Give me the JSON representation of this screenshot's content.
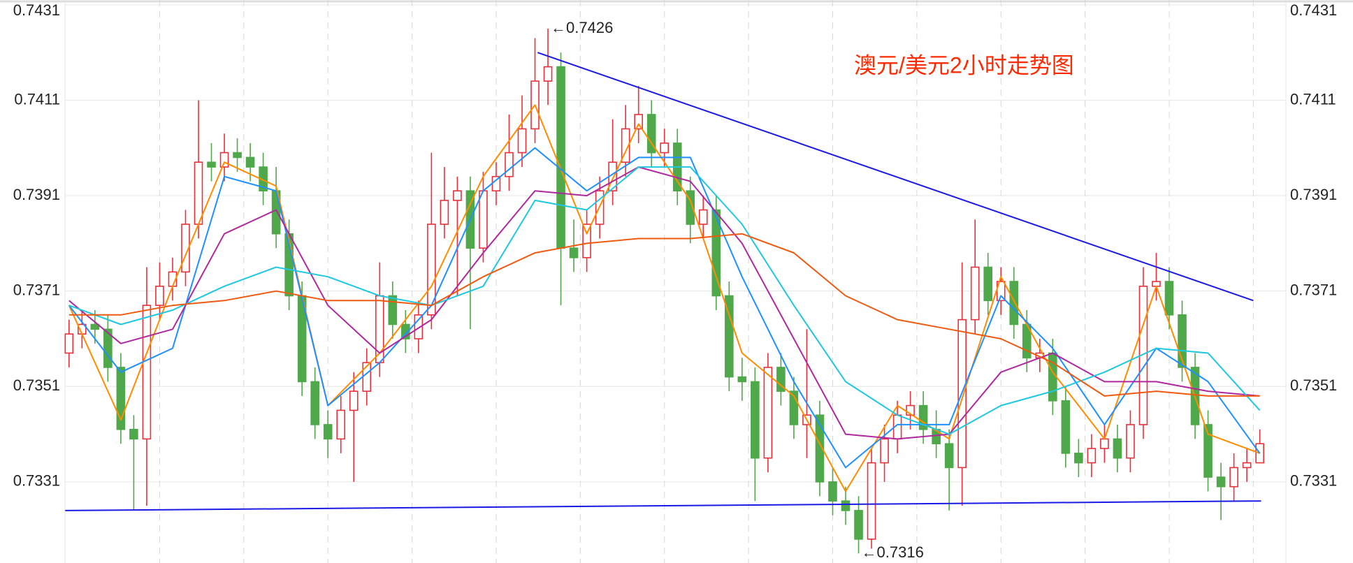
{
  "chart_data": {
    "type": "candlestick",
    "title": "澳元/美元2小时走势图",
    "title_color": "#ff2a00",
    "up_color": "#e8313a",
    "down_color": "#4fa84a",
    "ylim": [
      0.7314,
      0.7432
    ],
    "yticks": [
      0.7331,
      0.7351,
      0.7371,
      0.7391,
      0.7411,
      0.7431
    ],
    "grid": true,
    "xgrid": [
      7,
      13.5,
      20,
      26.5,
      33,
      39.5,
      46,
      52.5,
      59,
      65.5,
      72,
      78.5,
      85,
      91.5
    ],
    "open": [
      0.7358,
      0.7362,
      0.7364,
      0.7363,
      0.7355,
      0.7342,
      0.734,
      0.7368,
      0.7372,
      0.7375,
      0.7385,
      0.7398,
      0.7397,
      0.74,
      0.7399,
      0.7397,
      0.7392,
      0.7383,
      0.737,
      0.7352,
      0.7343,
      0.734,
      0.7346,
      0.735,
      0.7356,
      0.737,
      0.7364,
      0.7361,
      0.7366,
      0.7385,
      0.739,
      0.7392,
      0.738,
      0.7392,
      0.7395,
      0.74,
      0.7405,
      0.7415,
      0.7418,
      0.738,
      0.7378,
      0.7385,
      0.7392,
      0.7398,
      0.7405,
      0.7408,
      0.74,
      0.7402,
      0.7392,
      0.7385,
      0.7388,
      0.737,
      0.7353,
      0.7352,
      0.7336,
      0.7355,
      0.735,
      0.7343,
      0.7345,
      0.7331,
      0.7327,
      0.7325,
      0.7319,
      0.7335,
      0.734,
      0.7345,
      0.7347,
      0.7342,
      0.7339,
      0.7334,
      0.7365,
      0.7376,
      0.7369,
      0.7373,
      0.7364,
      0.7357,
      0.7358,
      0.7348,
      0.7337,
      0.7335,
      0.7338,
      0.734,
      0.7336,
      0.7343,
      0.7372,
      0.7373,
      0.7366,
      0.7355,
      0.7343,
      0.7332,
      0.733,
      0.7334,
      0.7335
    ],
    "high": [
      0.7365,
      0.7367,
      0.7367,
      0.7366,
      0.7358,
      0.7345,
      0.7376,
      0.7377,
      0.7378,
      0.7388,
      0.7411,
      0.7402,
      0.7404,
      0.7403,
      0.7402,
      0.74,
      0.7397,
      0.7386,
      0.7373,
      0.7355,
      0.7346,
      0.7349,
      0.7354,
      0.7359,
      0.7377,
      0.7373,
      0.7367,
      0.7369,
      0.74,
      0.7397,
      0.7395,
      0.7395,
      0.7396,
      0.7398,
      0.7408,
      0.7412,
      0.7424,
      0.7426,
      0.7421,
      0.7386,
      0.7388,
      0.7395,
      0.7407,
      0.741,
      0.7414,
      0.7411,
      0.7405,
      0.7405,
      0.7395,
      0.7391,
      0.7391,
      0.7373,
      0.7357,
      0.7355,
      0.7358,
      0.7358,
      0.7353,
      0.7363,
      0.7348,
      0.7334,
      0.733,
      0.7328,
      0.7338,
      0.7343,
      0.7348,
      0.735,
      0.735,
      0.7346,
      0.7342,
      0.7377,
      0.7386,
      0.7379,
      0.7376,
      0.7376,
      0.7367,
      0.7361,
      0.7361,
      0.7351,
      0.734,
      0.7341,
      0.7343,
      0.7343,
      0.7346,
      0.7376,
      0.7379,
      0.7376,
      0.7369,
      0.7358,
      0.7346,
      0.7335,
      0.7337,
      0.7338,
      0.7342
    ],
    "low": [
      0.7355,
      0.7359,
      0.736,
      0.7352,
      0.7339,
      0.7325,
      0.7326,
      0.7365,
      0.7369,
      0.7372,
      0.7382,
      0.7394,
      0.7394,
      0.7396,
      0.7394,
      0.7389,
      0.738,
      0.7367,
      0.7349,
      0.734,
      0.7336,
      0.7337,
      0.7331,
      0.7347,
      0.7353,
      0.7361,
      0.7358,
      0.7358,
      0.7363,
      0.7382,
      0.737,
      0.7363,
      0.7377,
      0.7389,
      0.7392,
      0.7397,
      0.7402,
      0.741,
      0.7368,
      0.7375,
      0.7375,
      0.7382,
      0.7389,
      0.7395,
      0.7402,
      0.7397,
      0.7397,
      0.7389,
      0.7381,
      0.7382,
      0.7367,
      0.735,
      0.7348,
      0.7327,
      0.7333,
      0.7347,
      0.734,
      0.7336,
      0.7328,
      0.7324,
      0.7322,
      0.7316,
      0.7317,
      0.7331,
      0.7337,
      0.7342,
      0.7339,
      0.7336,
      0.7325,
      0.7326,
      0.7362,
      0.7366,
      0.7366,
      0.7361,
      0.7354,
      0.7354,
      0.7345,
      0.7334,
      0.7332,
      0.7332,
      0.7335,
      0.7333,
      0.7333,
      0.734,
      0.7369,
      0.7363,
      0.7352,
      0.734,
      0.7329,
      0.7323,
      0.7327,
      0.7331,
      0.7336
    ],
    "close": [
      0.7362,
      0.7364,
      0.7363,
      0.7355,
      0.7342,
      0.734,
      0.7368,
      0.7372,
      0.7375,
      0.7385,
      0.7398,
      0.7397,
      0.74,
      0.7399,
      0.7397,
      0.7392,
      0.7383,
      0.737,
      0.7352,
      0.7343,
      0.734,
      0.7346,
      0.735,
      0.7356,
      0.737,
      0.7364,
      0.7361,
      0.7366,
      0.7385,
      0.739,
      0.7392,
      0.738,
      0.7392,
      0.7395,
      0.74,
      0.7405,
      0.7415,
      0.7418,
      0.738,
      0.7378,
      0.7385,
      0.7392,
      0.7398,
      0.7405,
      0.7408,
      0.74,
      0.7402,
      0.7392,
      0.7385,
      0.7388,
      0.737,
      0.7353,
      0.7352,
      0.7336,
      0.7355,
      0.735,
      0.7343,
      0.7345,
      0.7331,
      0.7327,
      0.7325,
      0.7319,
      0.7335,
      0.734,
      0.7345,
      0.7347,
      0.7342,
      0.7339,
      0.7334,
      0.7365,
      0.7376,
      0.7369,
      0.7373,
      0.7364,
      0.7357,
      0.7358,
      0.7348,
      0.7337,
      0.7335,
      0.7338,
      0.734,
      0.7336,
      0.7343,
      0.7372,
      0.7373,
      0.7366,
      0.7355,
      0.7343,
      0.7332,
      0.733,
      0.7334,
      0.7335,
      0.7339
    ],
    "ma_x": [
      0,
      4,
      8,
      12,
      16,
      20,
      24,
      28,
      32,
      36,
      40,
      44,
      48,
      52,
      56,
      60,
      64,
      68,
      72,
      76,
      80,
      84,
      88,
      92
    ],
    "lines": [
      {
        "color": "#ff8c00",
        "values": [
          0.7368,
          0.7344,
          0.7372,
          0.7398,
          0.7393,
          0.7347,
          0.7358,
          0.7372,
          0.7395,
          0.741,
          0.7383,
          0.7406,
          0.739,
          0.7358,
          0.7349,
          0.7329,
          0.7347,
          0.734,
          0.7374,
          0.7354,
          0.734,
          0.7372,
          0.7341,
          0.7337
        ]
      },
      {
        "color": "#1e90ff",
        "values": [
          0.7368,
          0.7354,
          0.7359,
          0.7395,
          0.7392,
          0.7347,
          0.7356,
          0.7368,
          0.7392,
          0.7401,
          0.7392,
          0.7399,
          0.7399,
          0.7374,
          0.7352,
          0.7334,
          0.7343,
          0.7343,
          0.737,
          0.7359,
          0.7343,
          0.7359,
          0.7352,
          0.7337
        ]
      },
      {
        "color": "#b0289e",
        "values": [
          0.7369,
          0.736,
          0.7363,
          0.7383,
          0.7388,
          0.7368,
          0.7358,
          0.7365,
          0.7379,
          0.7392,
          0.7391,
          0.7397,
          0.7394,
          0.7381,
          0.7361,
          0.7341,
          0.734,
          0.7341,
          0.7354,
          0.7358,
          0.7352,
          0.7352,
          0.735,
          0.7349
        ]
      },
      {
        "color": "#1ec8e0",
        "values": [
          0.7368,
          0.7364,
          0.7367,
          0.7372,
          0.7376,
          0.7374,
          0.737,
          0.7368,
          0.7372,
          0.739,
          0.7388,
          0.7397,
          0.7397,
          0.7385,
          0.7368,
          0.7352,
          0.7345,
          0.7341,
          0.7347,
          0.735,
          0.7354,
          0.7359,
          0.7358,
          0.7346
        ]
      },
      {
        "color": "#f05a10",
        "values": [
          0.7366,
          0.7366,
          0.7368,
          0.7369,
          0.7371,
          0.7369,
          0.7369,
          0.7368,
          0.7374,
          0.7379,
          0.7381,
          0.7382,
          0.7382,
          0.7383,
          0.7379,
          0.737,
          0.7365,
          0.7363,
          0.7361,
          0.7356,
          0.7349,
          0.735,
          0.7349,
          0.7349
        ]
      }
    ],
    "trendlines": [
      {
        "color": "#1a1ae6",
        "x": [
          36.2,
          91.5
        ],
        "values": [
          0.7421,
          0.7369
        ]
      },
      {
        "color": "#1a1ae6",
        "x": [
          -0.3,
          92.1
        ],
        "values": [
          0.7325,
          0.7327
        ]
      }
    ],
    "annotations": [
      {
        "text": "←0.7426",
        "x": 37,
        "value": 0.7426
      },
      {
        "text": "←0.7316",
        "x": 61,
        "value": 0.7316
      }
    ]
  }
}
